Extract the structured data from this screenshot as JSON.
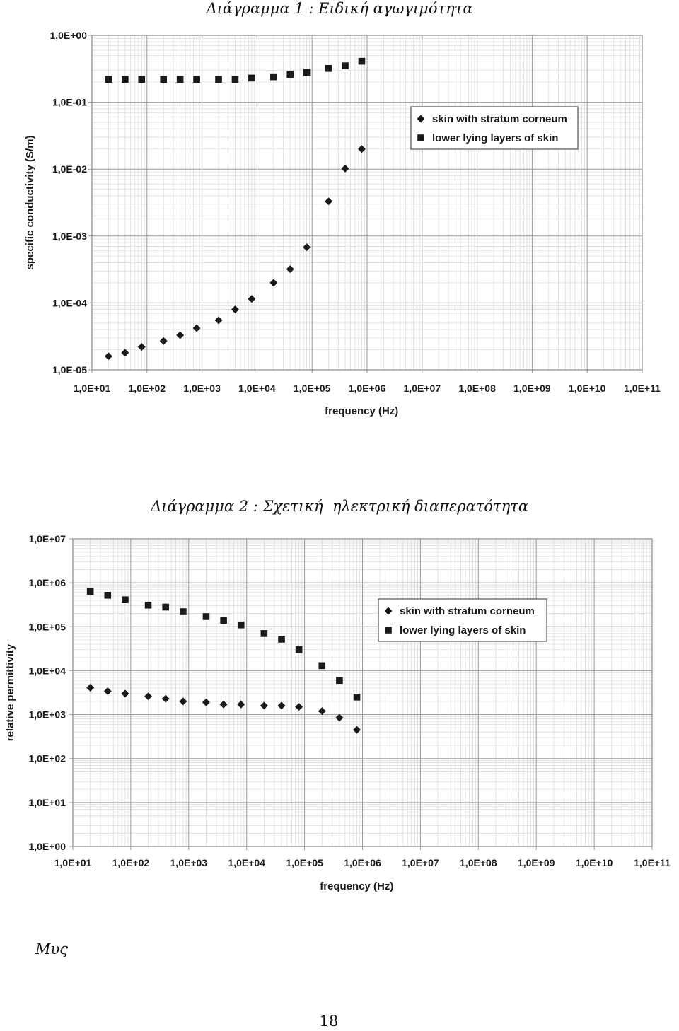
{
  "page": {
    "caption_1": "Διάγραμμα 1 : Ειδική αγωγιμότητα",
    "caption_2": "Διάγραμμα 2 : Σχετική  ηλεκτρική διαπερατότητα",
    "footer_word": "Μυς",
    "page_number": "18"
  },
  "chart_data": [
    {
      "type": "scatter",
      "title": "",
      "xlabel": "frequency (Hz)",
      "ylabel": "specific conductivity (S/m)",
      "xscale": "log",
      "yscale": "log",
      "xlim": [
        10,
        100000000000
      ],
      "ylim": [
        1e-05,
        1
      ],
      "grid": true,
      "legend_position": "upper-right",
      "x_tick_labels": [
        "1,0E+01",
        "1,0E+02",
        "1,0E+03",
        "1,0E+04",
        "1,0E+05",
        "1,0E+06",
        "1,0E+07",
        "1,0E+08",
        "1,0E+09",
        "1,0E+10",
        "1,0E+11"
      ],
      "y_tick_labels": [
        "1,0E-05",
        "1,0E-04",
        "1,0E-03",
        "1,0E-02",
        "1,0E-01",
        "1,0E+00"
      ],
      "series": [
        {
          "name": "skin with stratum corneum",
          "marker": "diamond",
          "x": [
            20,
            40,
            80,
            200,
            400,
            800,
            2000,
            4000,
            8000,
            20000,
            40000,
            80000,
            200000,
            400000,
            800000
          ],
          "y": [
            1.6e-05,
            1.8e-05,
            2.2e-05,
            2.7e-05,
            3.3e-05,
            4.2e-05,
            5.5e-05,
            8e-05,
            0.000115,
            0.0002,
            0.00032,
            0.00068,
            0.0033,
            0.0102,
            0.02
          ]
        },
        {
          "name": "lower lying layers of skin",
          "marker": "square",
          "x": [
            20,
            40,
            80,
            200,
            400,
            800,
            2000,
            4000,
            8000,
            20000,
            40000,
            80000,
            200000,
            400000,
            800000
          ],
          "y": [
            0.22,
            0.22,
            0.22,
            0.22,
            0.22,
            0.22,
            0.22,
            0.22,
            0.23,
            0.24,
            0.26,
            0.28,
            0.32,
            0.35,
            0.41
          ]
        }
      ]
    },
    {
      "type": "scatter",
      "title": "",
      "xlabel": "frequency (Hz)",
      "ylabel": "relative permittivity",
      "xscale": "log",
      "yscale": "log",
      "xlim": [
        10,
        100000000000
      ],
      "ylim": [
        1,
        10000000
      ],
      "grid": true,
      "legend_position": "upper-right",
      "x_tick_labels": [
        "1,0E+01",
        "1,0E+02",
        "1,0E+03",
        "1,0E+04",
        "1,0E+05",
        "1,0E+06",
        "1,0E+07",
        "1,0E+08",
        "1,0E+09",
        "1,0E+10",
        "1,0E+11"
      ],
      "y_tick_labels": [
        "1,0E+00",
        "1,0E+01",
        "1,0E+02",
        "1,0E+03",
        "1,0E+04",
        "1,0E+05",
        "1,0E+06",
        "1,0E+07"
      ],
      "series": [
        {
          "name": "skin with stratum corneum",
          "marker": "diamond",
          "x": [
            20,
            40,
            80,
            200,
            400,
            800,
            2000,
            4000,
            8000,
            20000,
            40000,
            80000,
            200000,
            400000,
            800000
          ],
          "y": [
            4100,
            3400,
            3000,
            2600,
            2300,
            2000,
            1900,
            1700,
            1700,
            1600,
            1600,
            1500,
            1200,
            850,
            450
          ]
        },
        {
          "name": "lower lying layers of skin",
          "marker": "square",
          "x": [
            20,
            40,
            80,
            200,
            400,
            800,
            2000,
            4000,
            8000,
            20000,
            40000,
            80000,
            200000,
            400000,
            800000
          ],
          "y": [
            630000,
            520000,
            410000,
            310000,
            280000,
            220000,
            170000,
            140000,
            110000,
            70000,
            52000,
            30000,
            13000,
            6000,
            2500
          ]
        }
      ]
    }
  ]
}
